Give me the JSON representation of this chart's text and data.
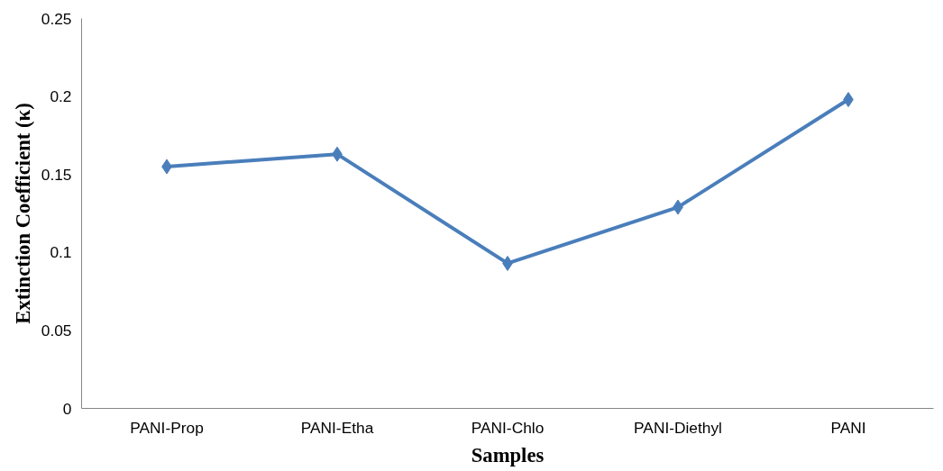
{
  "chart_data": {
    "type": "line",
    "xlabel": "Samples",
    "ylabel": "Extinction Coefficient (κ)",
    "categories": [
      "PANI-Prop",
      "PANI-Etha",
      "PANI-Chlo",
      "PANI-Diethyl",
      "PANI"
    ],
    "series": [
      {
        "color": "#4a7ebb",
        "values": [
          0.155,
          0.163,
          0.093,
          0.129,
          0.198
        ]
      }
    ],
    "ylim": [
      0,
      0.25
    ],
    "yticks": [
      0,
      0.05,
      0.1,
      0.15,
      0.2,
      0.25
    ],
    "marker": "diamond",
    "line_style": "solid",
    "grid": false
  }
}
